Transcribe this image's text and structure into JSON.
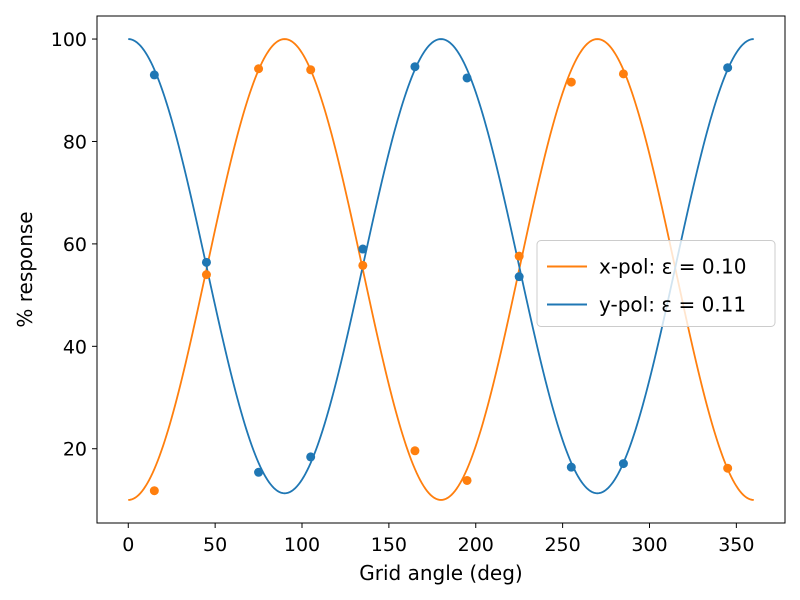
{
  "chart_data": {
    "type": "line",
    "xlabel": "Grid angle (deg)",
    "ylabel": "% response",
    "xlim": [
      -18,
      378
    ],
    "ylim": [
      5.5,
      104.5
    ],
    "xticks": [
      0,
      50,
      100,
      150,
      200,
      250,
      300,
      350
    ],
    "yticks": [
      20,
      40,
      60,
      80,
      100
    ],
    "grid": false,
    "legend_position": "center-right",
    "series": [
      {
        "name": "x-pol: ε = 0.10",
        "color": "#ff7f0e",
        "fit": {
          "model": "sin2",
          "min": 10,
          "max": 100,
          "phase_deg": 0
        },
        "points": [
          [
            15,
            11.8
          ],
          [
            45,
            54
          ],
          [
            75,
            94.2
          ],
          [
            105,
            94
          ],
          [
            135,
            55.8
          ],
          [
            165,
            19.6
          ],
          [
            195,
            13.8
          ],
          [
            225,
            57.6
          ],
          [
            255,
            91.6
          ],
          [
            285,
            93.2
          ],
          [
            345,
            16.2
          ]
        ]
      },
      {
        "name": "y-pol: ε = 0.11",
        "color": "#1f77b4",
        "fit": {
          "model": "cos2",
          "min": 11.3,
          "max": 100,
          "phase_deg": 0
        },
        "points": [
          [
            15,
            93
          ],
          [
            45,
            56.4
          ],
          [
            75,
            15.4
          ],
          [
            105,
            18.4
          ],
          [
            135,
            59
          ],
          [
            165,
            94.6
          ],
          [
            195,
            92.4
          ],
          [
            225,
            53.6
          ],
          [
            255,
            16.4
          ],
          [
            285,
            17.1
          ],
          [
            345,
            94.4
          ]
        ]
      }
    ]
  }
}
